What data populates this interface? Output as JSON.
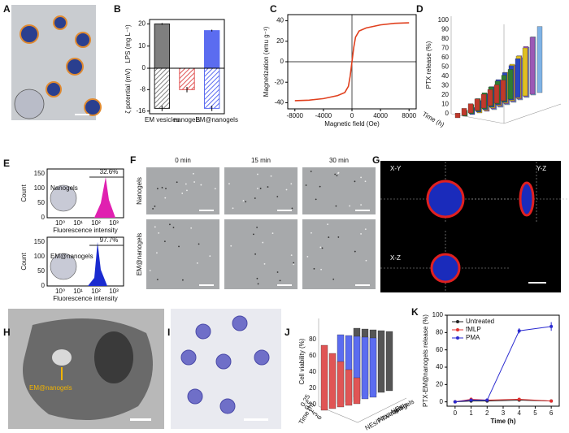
{
  "panel_labels": [
    "A",
    "B",
    "C",
    "D",
    "E",
    "F",
    "G",
    "H",
    "I",
    "J",
    "K"
  ],
  "chart_data": [
    {
      "type": "bar",
      "categories": [
        "EM vesicles",
        "nanogels",
        "EM@nanogels"
      ],
      "colors": [
        "#7f7f7f",
        "#e05555",
        "#5b6cf0"
      ],
      "series": [
        {
          "name": "LPS (mg L⁻¹)",
          "values": [
            20,
            0,
            17
          ],
          "errors": [
            0.4,
            0,
            0.4
          ]
        },
        {
          "name": "ζ potential (mV)",
          "values": [
            -15,
            -8,
            -15
          ],
          "errors": [
            1,
            1,
            1
          ],
          "axis": "y2"
        }
      ],
      "ylim": [
        0,
        22
      ],
      "yticks": [
        0,
        10,
        20
      ],
      "y2lim": [
        -17,
        0
      ],
      "y2ticks": [
        -16,
        -8
      ]
    },
    {
      "type": "line",
      "x_label": "Magnetic field (Oe)",
      "y_label": "Magnetization (emu g⁻¹)",
      "x": [
        -8000,
        -6000,
        -4000,
        -2000,
        -1000,
        -500,
        -250,
        0,
        250,
        500,
        1000,
        2000,
        4000,
        6000,
        8000
      ],
      "series": [
        {
          "name": "M",
          "color": "#e0401e",
          "values": [
            -38,
            -37.5,
            -36,
            -33,
            -30,
            -24,
            -14,
            0,
            14,
            24,
            30,
            33,
            36,
            37.5,
            38
          ]
        }
      ],
      "xlim": [
        -9000,
        9000
      ],
      "xticks": [
        -8000,
        -4000,
        0,
        4000,
        8000
      ],
      "ylim": [
        -46,
        46
      ],
      "yticks": [
        -40,
        -20,
        0,
        20,
        40
      ],
      "markers": false,
      "legend": false
    },
    {
      "type": "line",
      "x_label": "Time (h)",
      "y_label": "PTX-EM@nanogels release (%)",
      "x": [
        0,
        1,
        2,
        4,
        6
      ],
      "series": [
        {
          "name": "Untreated",
          "color": "#222222",
          "values": [
            0,
            1,
            1,
            2,
            1
          ],
          "errors": [
            0.5,
            1,
            1,
            1,
            1
          ]
        },
        {
          "name": "fMLP",
          "color": "#e03030",
          "values": [
            0,
            3,
            2,
            3,
            1
          ],
          "errors": [
            0.5,
            2,
            1,
            1,
            1
          ]
        },
        {
          "name": "PMA",
          "color": "#2a2ad0",
          "values": [
            0,
            2,
            2,
            82,
            87
          ],
          "errors": [
            0.5,
            1,
            1,
            3,
            5
          ]
        }
      ],
      "xlim": [
        -0.5,
        6.5
      ],
      "xticks": [
        0,
        1,
        2,
        3,
        4,
        5,
        6
      ],
      "ylim": [
        -5,
        100
      ],
      "yticks": [
        0,
        20,
        40,
        60,
        80,
        100
      ],
      "markers": true,
      "legend": "upper left"
    }
  ],
  "panel_d": {
    "z_label": "PTX release (%)",
    "x_label": "Time (h)",
    "z_ticks": [
      0,
      10,
      20,
      30,
      40,
      50,
      60,
      70,
      80,
      90,
      100
    ]
  },
  "panel_e": {
    "y_label": "Count",
    "x_label": "Fluorescence intensity",
    "y_ticks": [
      0,
      50,
      100,
      150
    ],
    "x_ticks": [
      "10⁰",
      "10¹",
      "10²",
      "10³"
    ],
    "plots": [
      {
        "name": "Nanogels",
        "percent": "32.6%"
      },
      {
        "name": "EM@nanogels",
        "percent": "97.7%"
      }
    ]
  },
  "panel_f": {
    "times": [
      "0 min",
      "15 min",
      "30 min"
    ],
    "rows": [
      "Nanogels",
      "EM@nanogels"
    ]
  },
  "panel_g": {
    "views": [
      "X-Y",
      "Y-Z",
      "X-Z"
    ]
  },
  "panel_h": {
    "label": "EM@nanogels"
  },
  "panel_j": {
    "z_label": "Cell viability (%)",
    "x_label": "Time (h)",
    "z_ticks": [
      0,
      20,
      40,
      60,
      80
    ],
    "times": [
      "0.25",
      "0.5",
      "1",
      "3",
      "6"
    ],
    "groups": [
      "NEs/PTX-nanogels",
      "Neutrophils",
      "NEs"
    ]
  }
}
